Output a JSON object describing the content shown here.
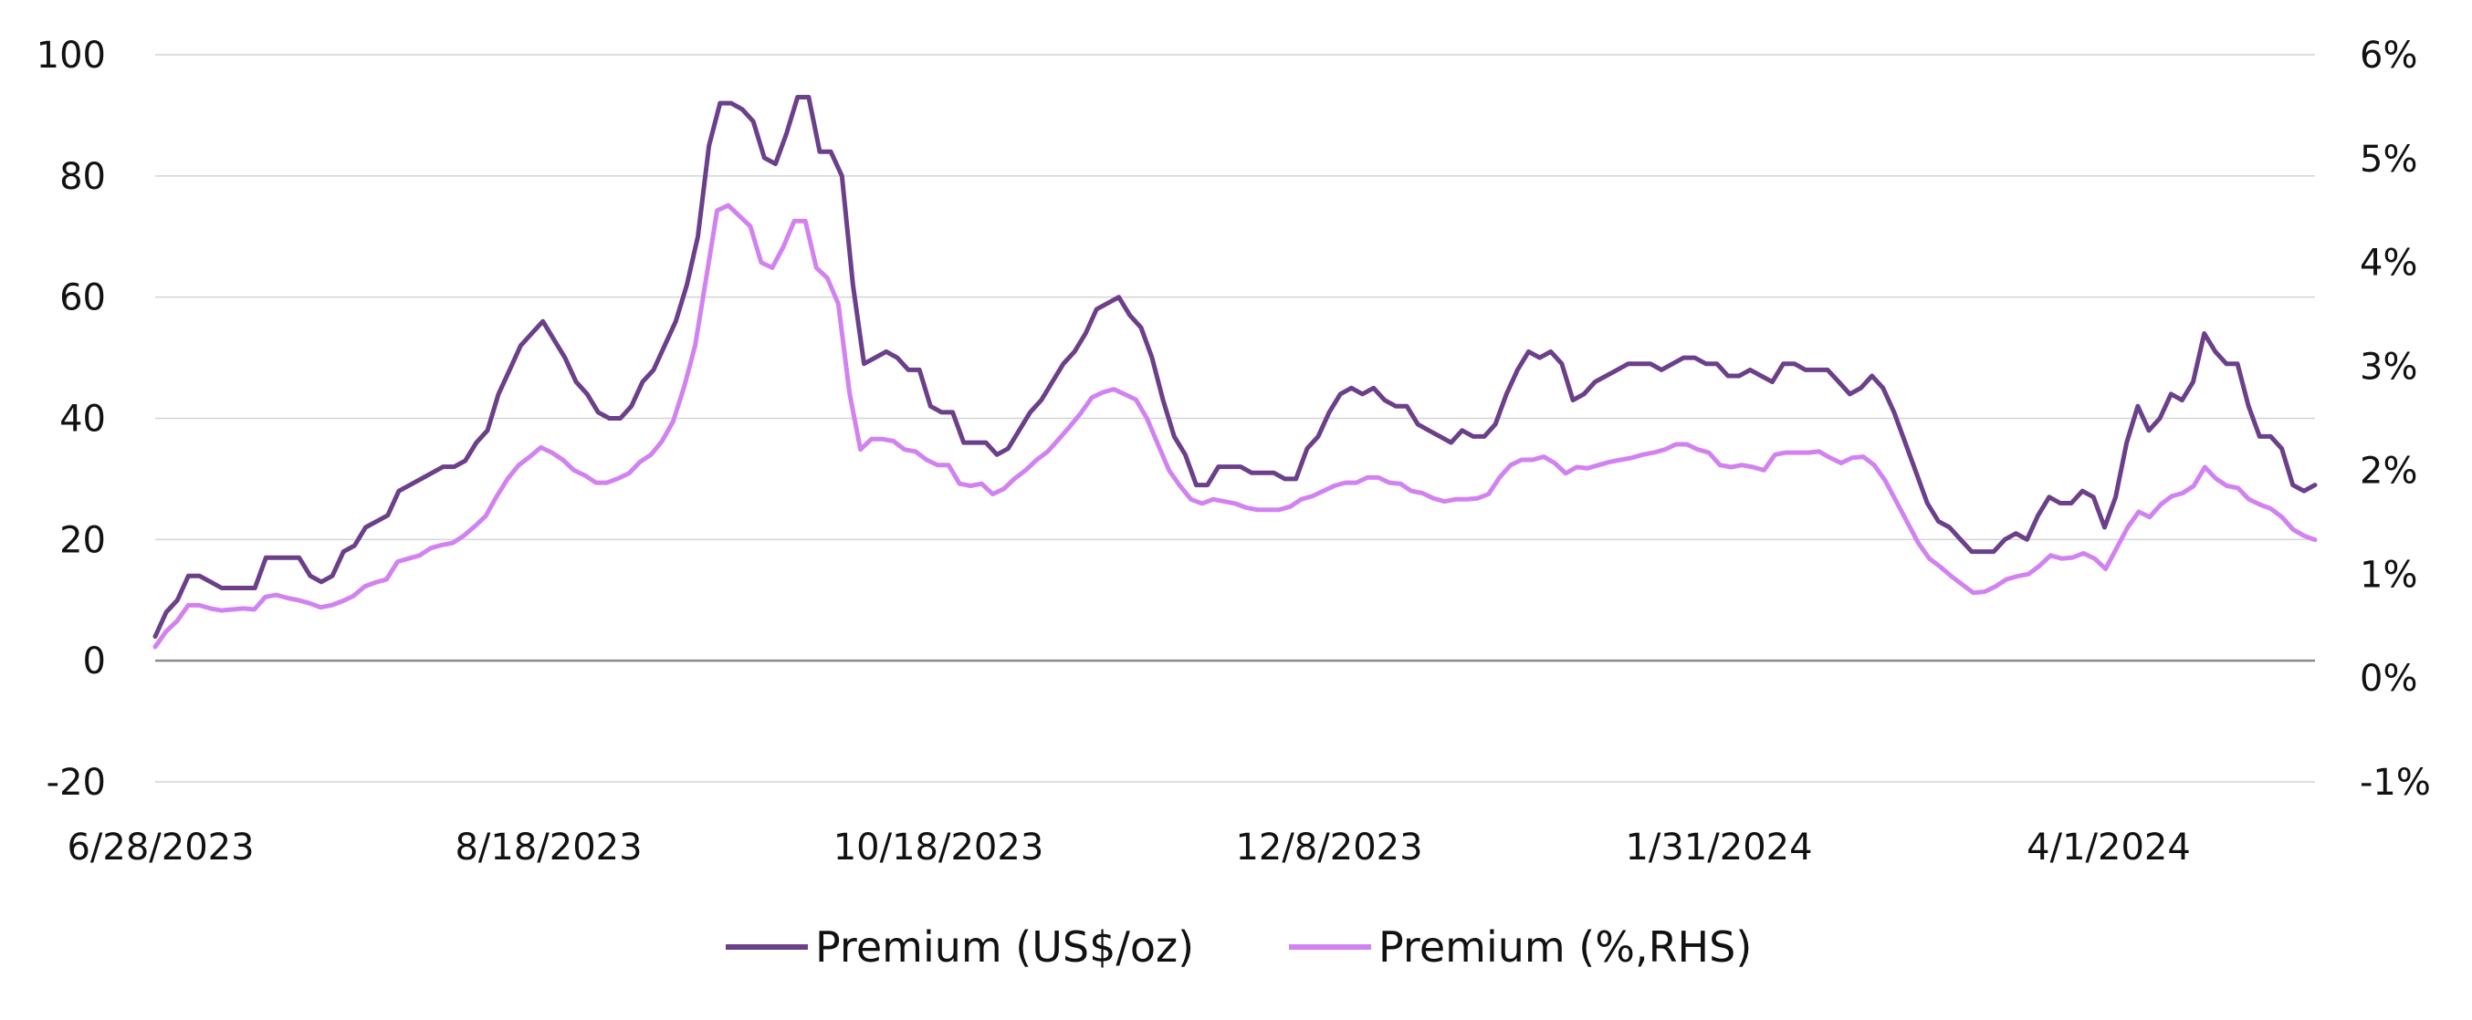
{
  "chart_data": {
    "type": "line",
    "title": "",
    "x_tick_labels": [
      "6/28/2023",
      "8/18/2023",
      "10/18/2023",
      "12/8/2023",
      "1/31/2024",
      "4/1/2024"
    ],
    "y_left": {
      "ticks": [
        -20,
        0,
        20,
        40,
        60,
        80,
        100
      ],
      "tick_labels": [
        "-20",
        "0",
        "20",
        "40",
        "60",
        "80",
        "100"
      ],
      "range": [
        -20,
        100
      ]
    },
    "y_right": {
      "ticks": [
        -1,
        0,
        1,
        2,
        3,
        4,
        5,
        6
      ],
      "tick_labels": [
        "-1%",
        "0%",
        "1%",
        "2%",
        "3%",
        "4%",
        "5%",
        "6%"
      ],
      "range": [
        -1,
        6
      ]
    },
    "grid": true,
    "legend_position": "bottom-center",
    "series": [
      {
        "name": "Premium (US$/oz)",
        "axis": "left",
        "color": "#6b3f8a",
        "values": [
          4,
          8,
          10,
          14,
          14,
          13,
          12,
          12,
          12,
          12,
          17,
          17,
          17,
          17,
          14,
          13,
          14,
          18,
          19,
          22,
          23,
          24,
          28,
          29,
          30,
          31,
          32,
          32,
          33,
          36,
          38,
          44,
          48,
          52,
          54,
          56,
          53,
          50,
          46,
          44,
          41,
          40,
          40,
          42,
          46,
          48,
          52,
          56,
          62,
          70,
          85,
          92,
          92,
          91,
          89,
          83,
          82,
          87,
          93,
          93,
          84,
          84,
          80,
          62,
          49,
          50,
          51,
          50,
          48,
          48,
          42,
          41,
          41,
          36,
          36,
          36,
          34,
          35,
          38,
          41,
          43,
          46,
          49,
          51,
          54,
          58,
          59,
          60,
          57,
          55,
          50,
          43,
          37,
          34,
          29,
          29,
          32,
          32,
          32,
          31,
          31,
          31,
          30,
          30,
          35,
          37,
          41,
          44,
          45,
          44,
          45,
          43,
          42,
          42,
          39,
          38,
          37,
          36,
          38,
          37,
          37,
          39,
          44,
          48,
          51,
          50,
          51,
          49,
          43,
          44,
          46,
          47,
          48,
          49,
          49,
          49,
          48,
          49,
          50,
          50,
          49,
          49,
          47,
          47,
          48,
          47,
          46,
          49,
          49,
          48,
          48,
          48,
          46,
          44,
          45,
          47,
          45,
          41,
          36,
          31,
          26,
          23,
          22,
          20,
          18,
          18,
          18,
          20,
          21,
          20,
          24,
          27,
          26,
          26,
          28,
          27,
          22,
          27,
          36,
          42,
          38,
          40,
          44,
          43,
          46,
          54,
          51,
          49,
          49,
          42,
          37,
          37,
          35,
          29,
          28,
          29
        ]
      },
      {
        "name": "Premium (%,RHS)",
        "axis": "right",
        "color": "#d282f0",
        "values": [
          0.3,
          0.45,
          0.55,
          0.7,
          0.7,
          0.67,
          0.65,
          0.66,
          0.67,
          0.66,
          0.78,
          0.8,
          0.77,
          0.75,
          0.72,
          0.68,
          0.7,
          0.74,
          0.79,
          0.88,
          0.92,
          0.95,
          1.12,
          1.15,
          1.18,
          1.25,
          1.28,
          1.3,
          1.37,
          1.46,
          1.56,
          1.75,
          1.92,
          2.05,
          2.13,
          2.22,
          2.17,
          2.1,
          2.0,
          1.95,
          1.88,
          1.88,
          1.92,
          1.97,
          2.08,
          2.15,
          2.28,
          2.47,
          2.8,
          3.2,
          3.85,
          4.5,
          4.55,
          4.45,
          4.35,
          4.0,
          3.95,
          4.15,
          4.4,
          4.4,
          3.95,
          3.85,
          3.6,
          2.75,
          2.2,
          2.3,
          2.3,
          2.28,
          2.2,
          2.18,
          2.1,
          2.05,
          2.05,
          1.87,
          1.85,
          1.87,
          1.77,
          1.82,
          1.92,
          2.0,
          2.1,
          2.18,
          2.3,
          2.42,
          2.55,
          2.7,
          2.75,
          2.78,
          2.73,
          2.68,
          2.5,
          2.25,
          2.0,
          1.85,
          1.72,
          1.68,
          1.72,
          1.7,
          1.68,
          1.64,
          1.62,
          1.62,
          1.62,
          1.65,
          1.72,
          1.75,
          1.8,
          1.85,
          1.88,
          1.88,
          1.93,
          1.93,
          1.88,
          1.87,
          1.8,
          1.78,
          1.73,
          1.7,
          1.72,
          1.72,
          1.73,
          1.77,
          1.93,
          2.05,
          2.1,
          2.1,
          2.13,
          2.07,
          1.97,
          2.03,
          2.02,
          2.05,
          2.08,
          2.1,
          2.12,
          2.15,
          2.17,
          2.2,
          2.25,
          2.25,
          2.2,
          2.17,
          2.05,
          2.03,
          2.05,
          2.03,
          2.0,
          2.15,
          2.17,
          2.17,
          2.17,
          2.18,
          2.12,
          2.07,
          2.12,
          2.13,
          2.05,
          1.9,
          1.7,
          1.5,
          1.3,
          1.15,
          1.07,
          0.98,
          0.9,
          0.82,
          0.83,
          0.88,
          0.95,
          0.98,
          1.0,
          1.08,
          1.18,
          1.15,
          1.16,
          1.2,
          1.15,
          1.05,
          1.25,
          1.45,
          1.6,
          1.55,
          1.67,
          1.75,
          1.78,
          1.85,
          2.03,
          1.92,
          1.85,
          1.83,
          1.72,
          1.67,
          1.63,
          1.55,
          1.43,
          1.37,
          1.33
        ]
      }
    ]
  }
}
